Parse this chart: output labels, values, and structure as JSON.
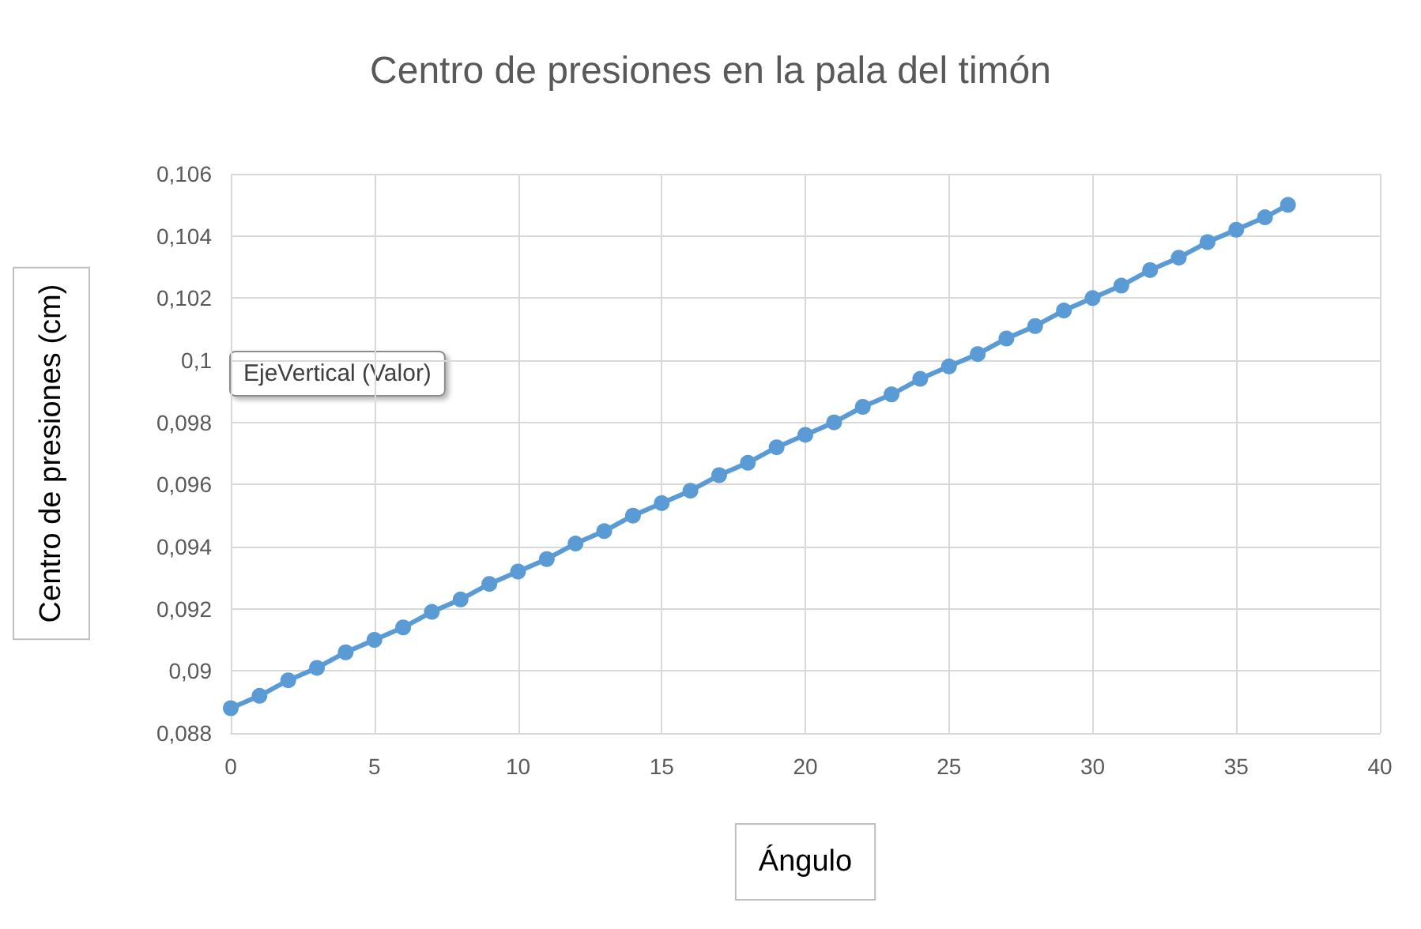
{
  "chart_data": {
    "type": "line",
    "title": "Centro de presiones en la pala del timón",
    "xlabel": "Ángulo",
    "ylabel": "Centro de presiones (cm)",
    "annotations": [
      "EjeVertical (Valor)"
    ],
    "x": [
      0,
      1,
      2,
      3,
      4,
      5,
      6,
      7,
      8,
      9,
      10,
      11,
      12,
      13,
      14,
      15,
      16,
      17,
      18,
      19,
      20,
      21,
      22,
      23,
      24,
      25,
      26,
      27,
      28,
      29,
      30,
      31,
      32,
      33,
      34,
      35,
      36,
      36.8
    ],
    "series": [
      {
        "color": "#5b9bd5",
        "values": [
          0.0888,
          0.0892,
          0.0897,
          0.0901,
          0.0906,
          0.091,
          0.0914,
          0.0919,
          0.0923,
          0.0928,
          0.0932,
          0.0936,
          0.0941,
          0.0945,
          0.095,
          0.0954,
          0.0958,
          0.0963,
          0.0967,
          0.0972,
          0.0976,
          0.098,
          0.0985,
          0.0989,
          0.0994,
          0.0998,
          0.1002,
          0.1007,
          0.1011,
          0.1016,
          0.102,
          0.1024,
          0.1029,
          0.1033,
          0.1038,
          0.1042,
          0.1046,
          0.105
        ]
      }
    ],
    "xlim": [
      0,
      40
    ],
    "xticks": [
      0,
      5,
      10,
      15,
      20,
      25,
      30,
      35,
      40
    ],
    "ylim": [
      0.088,
      0.106
    ],
    "yticks": [
      {
        "value": 0.088,
        "label": "0,088"
      },
      {
        "value": 0.09,
        "label": "0,09"
      },
      {
        "value": 0.092,
        "label": "0,092"
      },
      {
        "value": 0.094,
        "label": "0,094"
      },
      {
        "value": 0.096,
        "label": "0,096"
      },
      {
        "value": 0.098,
        "label": "0,098"
      },
      {
        "value": 0.1,
        "label": "0,1"
      },
      {
        "value": 0.102,
        "label": "0,102"
      },
      {
        "value": 0.104,
        "label": "0,104"
      },
      {
        "value": 0.106,
        "label": "0,106"
      }
    ],
    "grid": true,
    "marker": "circle",
    "line_style": "solid"
  }
}
